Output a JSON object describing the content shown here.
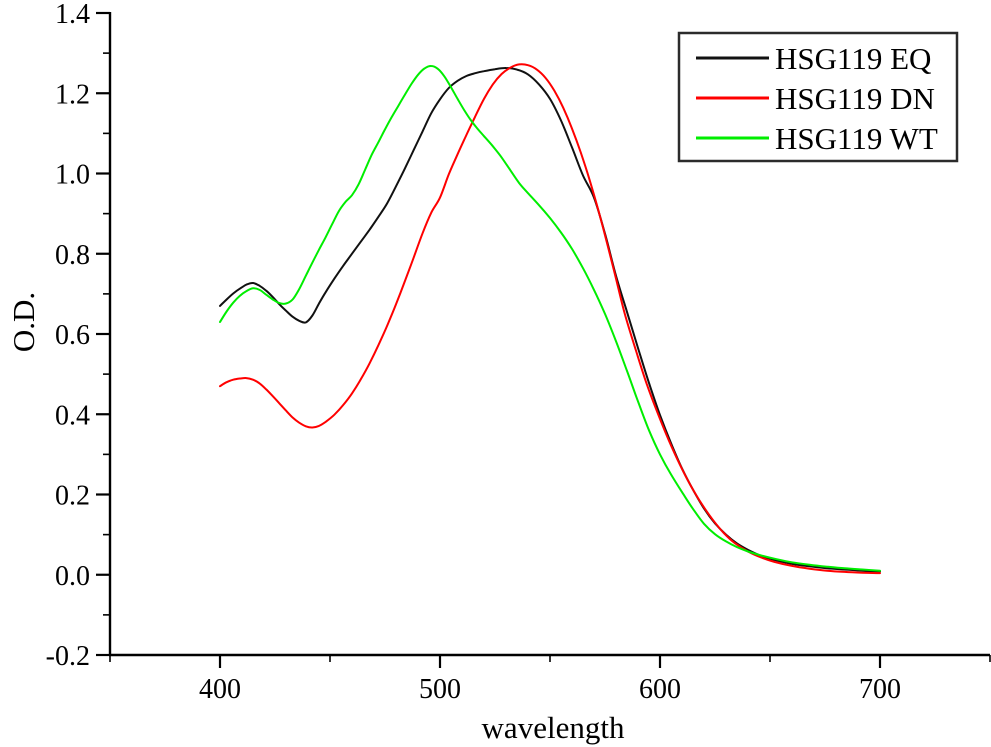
{
  "chart_data": {
    "type": "line",
    "title": "",
    "xlabel": "wavelength",
    "ylabel": "O.D.",
    "xlim": [
      350,
      750
    ],
    "ylim": [
      -0.2,
      1.4
    ],
    "grid": false,
    "legend_position": "top-right",
    "x_ticks": {
      "major": [
        {
          "v": 400,
          "label": "400"
        },
        {
          "v": 500,
          "label": "500"
        },
        {
          "v": 600,
          "label": "600"
        },
        {
          "v": 700,
          "label": "700"
        }
      ],
      "minor": [
        350,
        450,
        550,
        650,
        750
      ]
    },
    "y_ticks": {
      "major": [
        {
          "v": -0.2,
          "label": "-0.2"
        },
        {
          "v": 0.0,
          "label": "0.0"
        },
        {
          "v": 0.2,
          "label": "0.2"
        },
        {
          "v": 0.4,
          "label": "0.4"
        },
        {
          "v": 0.6,
          "label": "0.6"
        },
        {
          "v": 0.8,
          "label": "0.8"
        },
        {
          "v": 1.0,
          "label": "1.0"
        },
        {
          "v": 1.2,
          "label": "1.2"
        },
        {
          "v": 1.4,
          "label": "1.4"
        }
      ],
      "minor": [
        -0.1,
        0.1,
        0.3,
        0.5,
        0.7,
        0.9,
        1.1,
        1.3
      ]
    },
    "axis_color": "#000000",
    "series": [
      {
        "name": "HSG119 EQ",
        "color": "#111111",
        "points": [
          [
            400,
            0.67
          ],
          [
            403,
            0.686
          ],
          [
            406,
            0.701
          ],
          [
            409,
            0.713
          ],
          [
            412,
            0.723
          ],
          [
            415,
            0.727
          ],
          [
            418,
            0.72
          ],
          [
            421,
            0.708
          ],
          [
            424,
            0.692
          ],
          [
            427,
            0.674
          ],
          [
            430,
            0.658
          ],
          [
            433,
            0.643
          ],
          [
            436,
            0.633
          ],
          [
            439,
            0.629
          ],
          [
            442,
            0.646
          ],
          [
            445,
            0.676
          ],
          [
            448,
            0.704
          ],
          [
            452,
            0.738
          ],
          [
            456,
            0.77
          ],
          [
            460,
            0.8
          ],
          [
            464,
            0.83
          ],
          [
            468,
            0.86
          ],
          [
            472,
            0.892
          ],
          [
            476,
            0.926
          ],
          [
            480,
            0.968
          ],
          [
            484,
            1.012
          ],
          [
            488,
            1.058
          ],
          [
            492,
            1.104
          ],
          [
            496,
            1.15
          ],
          [
            500,
            1.185
          ],
          [
            504,
            1.213
          ],
          [
            508,
            1.231
          ],
          [
            512,
            1.243
          ],
          [
            516,
            1.25
          ],
          [
            520,
            1.255
          ],
          [
            525,
            1.26
          ],
          [
            530,
            1.263
          ],
          [
            535,
            1.259
          ],
          [
            540,
            1.247
          ],
          [
            545,
            1.222
          ],
          [
            550,
            1.186
          ],
          [
            555,
            1.132
          ],
          [
            560,
            1.065
          ],
          [
            565,
            0.995
          ],
          [
            570,
            0.94
          ],
          [
            575,
            0.85
          ],
          [
            580,
            0.745
          ],
          [
            585,
            0.655
          ],
          [
            590,
            0.565
          ],
          [
            595,
            0.478
          ],
          [
            600,
            0.398
          ],
          [
            605,
            0.328
          ],
          [
            610,
            0.265
          ],
          [
            615,
            0.212
          ],
          [
            620,
            0.165
          ],
          [
            625,
            0.128
          ],
          [
            630,
            0.1
          ],
          [
            635,
            0.078
          ],
          [
            640,
            0.062
          ],
          [
            646,
            0.047
          ],
          [
            652,
            0.037
          ],
          [
            660,
            0.027
          ],
          [
            668,
            0.021
          ],
          [
            676,
            0.016
          ],
          [
            684,
            0.013
          ],
          [
            692,
            0.01
          ],
          [
            700,
            0.008
          ]
        ]
      },
      {
        "name": "HSG119 DN",
        "color": "#ff0000",
        "points": [
          [
            400,
            0.47
          ],
          [
            403,
            0.48
          ],
          [
            406,
            0.486
          ],
          [
            409,
            0.489
          ],
          [
            412,
            0.49
          ],
          [
            415,
            0.486
          ],
          [
            418,
            0.477
          ],
          [
            421,
            0.462
          ],
          [
            424,
            0.445
          ],
          [
            427,
            0.427
          ],
          [
            430,
            0.409
          ],
          [
            433,
            0.392
          ],
          [
            436,
            0.379
          ],
          [
            439,
            0.37
          ],
          [
            442,
            0.367
          ],
          [
            445,
            0.371
          ],
          [
            448,
            0.381
          ],
          [
            452,
            0.399
          ],
          [
            456,
            0.423
          ],
          [
            460,
            0.452
          ],
          [
            464,
            0.487
          ],
          [
            468,
            0.527
          ],
          [
            472,
            0.572
          ],
          [
            476,
            0.621
          ],
          [
            480,
            0.674
          ],
          [
            484,
            0.731
          ],
          [
            488,
            0.79
          ],
          [
            492,
            0.85
          ],
          [
            496,
            0.902
          ],
          [
            500,
            0.94
          ],
          [
            504,
            0.998
          ],
          [
            508,
            1.048
          ],
          [
            512,
            1.096
          ],
          [
            516,
            1.142
          ],
          [
            520,
            1.186
          ],
          [
            524,
            1.222
          ],
          [
            528,
            1.248
          ],
          [
            532,
            1.264
          ],
          [
            536,
            1.272
          ],
          [
            540,
            1.27
          ],
          [
            544,
            1.259
          ],
          [
            548,
            1.238
          ],
          [
            552,
            1.206
          ],
          [
            556,
            1.164
          ],
          [
            560,
            1.112
          ],
          [
            564,
            1.052
          ],
          [
            568,
            0.984
          ],
          [
            572,
            0.908
          ],
          [
            576,
            0.825
          ],
          [
            580,
            0.738
          ],
          [
            584,
            0.65
          ],
          [
            589,
            0.56
          ],
          [
            594,
            0.475
          ],
          [
            599,
            0.402
          ],
          [
            604,
            0.335
          ],
          [
            609,
            0.275
          ],
          [
            614,
            0.222
          ],
          [
            619,
            0.176
          ],
          [
            624,
            0.137
          ],
          [
            629,
            0.104
          ],
          [
            634,
            0.079
          ],
          [
            640,
            0.058
          ],
          [
            646,
            0.043
          ],
          [
            652,
            0.032
          ],
          [
            660,
            0.022
          ],
          [
            668,
            0.015
          ],
          [
            676,
            0.01
          ],
          [
            684,
            0.007
          ],
          [
            692,
            0.005
          ],
          [
            700,
            0.004
          ]
        ]
      },
      {
        "name": "HSG119 WT",
        "color": "#00ee00",
        "points": [
          [
            400,
            0.63
          ],
          [
            403,
            0.656
          ],
          [
            406,
            0.678
          ],
          [
            409,
            0.695
          ],
          [
            412,
            0.707
          ],
          [
            415,
            0.714
          ],
          [
            418,
            0.71
          ],
          [
            421,
            0.698
          ],
          [
            424,
            0.686
          ],
          [
            427,
            0.677
          ],
          [
            430,
            0.676
          ],
          [
            433,
            0.686
          ],
          [
            436,
            0.712
          ],
          [
            439,
            0.745
          ],
          [
            442,
            0.778
          ],
          [
            445,
            0.81
          ],
          [
            448,
            0.841
          ],
          [
            451,
            0.874
          ],
          [
            454,
            0.906
          ],
          [
            457,
            0.929
          ],
          [
            460,
            0.946
          ],
          [
            463,
            0.973
          ],
          [
            466,
            1.01
          ],
          [
            469,
            1.047
          ],
          [
            472,
            1.078
          ],
          [
            475,
            1.11
          ],
          [
            478,
            1.14
          ],
          [
            481,
            1.168
          ],
          [
            484,
            1.196
          ],
          [
            487,
            1.223
          ],
          [
            490,
            1.246
          ],
          [
            493,
            1.262
          ],
          [
            496,
            1.268
          ],
          [
            499,
            1.261
          ],
          [
            502,
            1.242
          ],
          [
            505,
            1.215
          ],
          [
            508,
            1.186
          ],
          [
            511,
            1.158
          ],
          [
            514,
            1.133
          ],
          [
            517,
            1.112
          ],
          [
            520,
            1.093
          ],
          [
            524,
            1.068
          ],
          [
            528,
            1.04
          ],
          [
            532,
            1.008
          ],
          [
            536,
            0.976
          ],
          [
            540,
            0.951
          ],
          [
            545,
            0.921
          ],
          [
            550,
            0.889
          ],
          [
            555,
            0.853
          ],
          [
            560,
            0.812
          ],
          [
            565,
            0.764
          ],
          [
            570,
            0.71
          ],
          [
            575,
            0.65
          ],
          [
            580,
            0.582
          ],
          [
            585,
            0.508
          ],
          [
            590,
            0.432
          ],
          [
            595,
            0.36
          ],
          [
            600,
            0.3
          ],
          [
            605,
            0.25
          ],
          [
            610,
            0.206
          ],
          [
            615,
            0.164
          ],
          [
            620,
            0.127
          ],
          [
            625,
            0.101
          ],
          [
            630,
            0.083
          ],
          [
            635,
            0.069
          ],
          [
            640,
            0.058
          ],
          [
            646,
            0.048
          ],
          [
            652,
            0.04
          ],
          [
            660,
            0.031
          ],
          [
            668,
            0.025
          ],
          [
            676,
            0.02
          ],
          [
            684,
            0.016
          ],
          [
            692,
            0.013
          ],
          [
            700,
            0.01
          ]
        ]
      }
    ]
  }
}
